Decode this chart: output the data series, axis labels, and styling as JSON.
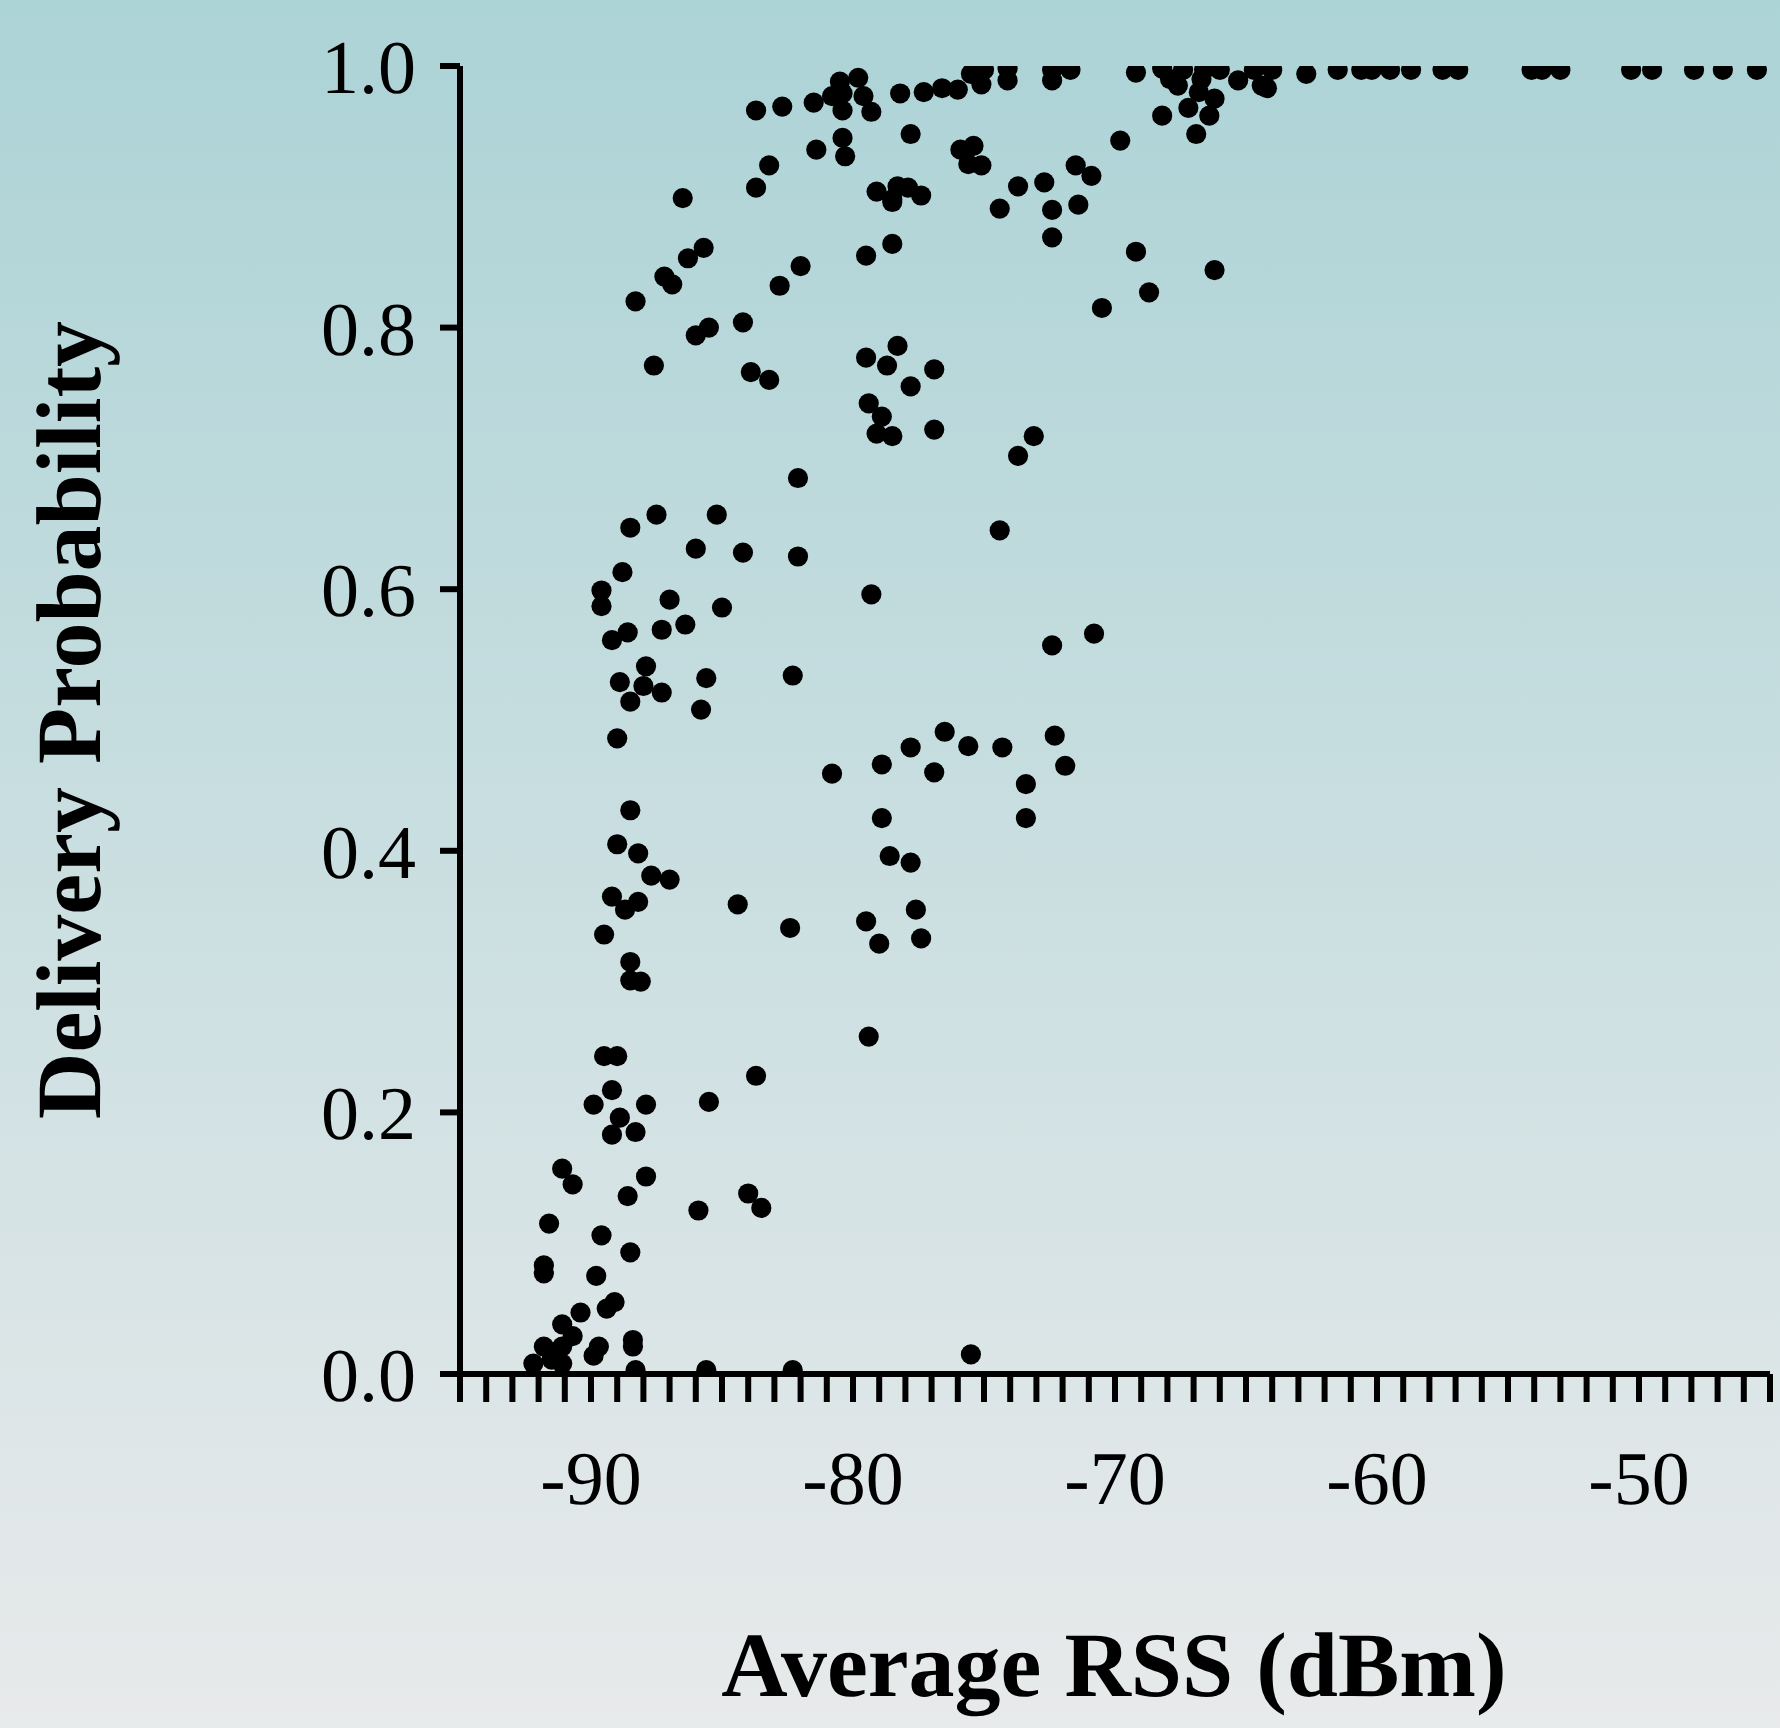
{
  "chart_data": {
    "type": "scatter",
    "xlabel": "Average RSS (dBm)",
    "ylabel": "Delivery Probability",
    "marker": "circle",
    "xlim": [
      -95,
      -45
    ],
    "ylim": [
      0,
      1
    ],
    "xticks": [
      {
        "value": -95,
        "label": null
      },
      {
        "value": -94,
        "label": null
      },
      {
        "value": -93,
        "label": null
      },
      {
        "value": -92,
        "label": null
      },
      {
        "value": -91,
        "label": null
      },
      -90,
      {
        "value": -89,
        "label": null
      },
      {
        "value": -88,
        "label": null
      },
      {
        "value": -87,
        "label": null
      },
      {
        "value": -86,
        "label": null
      },
      {
        "value": -85,
        "label": null
      },
      {
        "value": -84,
        "label": null
      },
      {
        "value": -83,
        "label": null
      },
      {
        "value": -82,
        "label": null
      },
      {
        "value": -81,
        "label": null
      },
      -80,
      {
        "value": -79,
        "label": null
      },
      {
        "value": -78,
        "label": null
      },
      {
        "value": -77,
        "label": null
      },
      {
        "value": -76,
        "label": null
      },
      {
        "value": -75,
        "label": null
      },
      {
        "value": -74,
        "label": null
      },
      {
        "value": -73,
        "label": null
      },
      {
        "value": -72,
        "label": null
      },
      {
        "value": -71,
        "label": null
      },
      -70,
      {
        "value": -69,
        "label": null
      },
      {
        "value": -68,
        "label": null
      },
      {
        "value": -67,
        "label": null
      },
      {
        "value": -66,
        "label": null
      },
      {
        "value": -65,
        "label": null
      },
      {
        "value": -64,
        "label": null
      },
      {
        "value": -63,
        "label": null
      },
      {
        "value": -62,
        "label": null
      },
      {
        "value": -61,
        "label": null
      },
      -60,
      {
        "value": -59,
        "label": null
      },
      {
        "value": -58,
        "label": null
      },
      {
        "value": -57,
        "label": null
      },
      {
        "value": -56,
        "label": null
      },
      {
        "value": -55,
        "label": null
      },
      {
        "value": -54,
        "label": null
      },
      {
        "value": -53,
        "label": null
      },
      {
        "value": -52,
        "label": null
      },
      {
        "value": -51,
        "label": null
      },
      -50,
      {
        "value": -49,
        "label": null
      },
      {
        "value": -48,
        "label": null
      },
      {
        "value": -47,
        "label": null
      },
      {
        "value": -46,
        "label": null
      },
      {
        "value": -45,
        "label": null
      }
    ],
    "yticks": [
      {
        "value": 0,
        "label": "0.0"
      },
      0.2,
      0.4,
      0.6,
      0.8,
      {
        "value": 1,
        "label": "1.0"
      }
    ],
    "series": [
      {
        "color": "#000000",
        "x": [
          -83.7,
          -82.7,
          -81.5,
          -80.8,
          -80.5,
          -79.8,
          -80.4,
          -79.3,
          -81.4,
          -80.4,
          -80.3,
          -83.2,
          -83.7,
          -86.5,
          -85.7,
          -86.3,
          -87.2,
          -86.9,
          -82.0,
          -82.8,
          -88.3,
          -84.2,
          -85.5,
          -86.0,
          -87.6,
          -83.9,
          -83.2,
          -79.5,
          -79.1,
          -78.5,
          -78.5,
          -79.5,
          -78.7,
          -79.4,
          -78.9,
          -79.1,
          -78.5,
          -82.1,
          -87.5,
          -88.5,
          -85.2,
          -86.0,
          -84.2,
          -82.1,
          -79.3,
          -88.8,
          -89.6,
          -89.6,
          -87.0,
          -87.3,
          -86.4,
          -85.0,
          -88.6,
          -89.2,
          -87.9,
          -88.9,
          -88.0,
          -87.3,
          -85.6,
          -82.3,
          -88.5,
          -85.8,
          -89.0,
          -80.8,
          -78.9,
          -88.5,
          -89.0,
          -88.2,
          -78.9,
          -78.6,
          -87.7,
          -87.0,
          -89.2,
          -88.2,
          -88.7,
          -84.4,
          -82.4,
          -89.5,
          -79.5,
          -79.0,
          -88.5,
          -88.5,
          -88.1,
          -79.4,
          -89.5,
          -89.0,
          -89.2,
          -89.9,
          -87.9,
          -85.5,
          -83.7,
          -88.9,
          -89.2,
          -88.3,
          -91.1,
          -90.7,
          -87.9,
          -88.6,
          -85.9,
          -84.0,
          -83.5,
          -91.6,
          -89.6,
          -88.5,
          -91.8,
          -91.8,
          -89.8,
          -89.1,
          -89.4,
          -90.4,
          -91.1,
          -90.7,
          -91.8,
          -91.1,
          -89.7,
          -88.4,
          -88.4,
          -92.2,
          -91.5,
          -91.1,
          -89.9,
          -88.3,
          -85.6,
          -82.3,
          -80.4,
          -79.6,
          -78.2,
          -77.3,
          -76.6,
          -76.0,
          -75.5,
          -75.1,
          -75.0,
          -74.1,
          -74.1,
          -72.4,
          -71.7,
          -72.4,
          -69.2,
          -68.2,
          -67.4,
          -66.6,
          -66.0,
          -65.3,
          -64.7,
          -64.0,
          -64.2,
          -62.7,
          -67.6,
          -66.8,
          -66.2,
          -67.2,
          -66.4,
          -67.9,
          -66.7,
          -68.2,
          -66.9,
          -69.8,
          -77.8,
          -75.9,
          -75.4,
          -75.6,
          -75.1,
          -78.3,
          -78.5,
          -77.9,
          -77.4,
          -73.7,
          -74.4,
          -72.7,
          -72.4,
          -71.5,
          -70.9,
          -71.4,
          -72.4,
          -69.2,
          -68.7,
          -70.5,
          -66.2,
          -78.3,
          -76.9,
          -77.8,
          -76.9,
          -73.1,
          -73.7,
          -74.4,
          -72.4,
          -70.8,
          -77.8,
          -76.5,
          -76.9,
          -75.6,
          -74.3,
          -72.3,
          -71.9,
          -73.4,
          -73.4,
          -77.8,
          -77.6,
          -77.4,
          -75.5,
          -61.5,
          -60.6,
          -60.2,
          -59.5,
          -58.7,
          -57.5,
          -56.9,
          -54.1,
          -53.7,
          -53.0,
          -50.3,
          -49.5,
          -47.9,
          -46.8,
          -45.5,
          -64.4
        ],
        "values": [
          0.966,
          0.969,
          0.972,
          0.977,
          0.988,
          0.991,
          0.966,
          0.965,
          0.936,
          0.945,
          0.931,
          0.924,
          0.907,
          0.899,
          0.861,
          0.853,
          0.839,
          0.833,
          0.847,
          0.832,
          0.82,
          0.804,
          0.8,
          0.794,
          0.771,
          0.766,
          0.76,
          0.855,
          0.904,
          0.898,
          0.864,
          0.777,
          0.771,
          0.742,
          0.732,
          0.719,
          0.717,
          0.685,
          0.657,
          0.647,
          0.657,
          0.631,
          0.628,
          0.625,
          0.596,
          0.613,
          0.599,
          0.587,
          0.592,
          0.569,
          0.573,
          0.586,
          0.567,
          0.561,
          0.541,
          0.529,
          0.526,
          0.521,
          0.532,
          0.534,
          0.514,
          0.508,
          0.486,
          0.459,
          0.466,
          0.431,
          0.405,
          0.398,
          0.425,
          0.396,
          0.381,
          0.378,
          0.365,
          0.361,
          0.355,
          0.359,
          0.341,
          0.336,
          0.346,
          0.329,
          0.315,
          0.301,
          0.3,
          0.258,
          0.243,
          0.243,
          0.217,
          0.206,
          0.206,
          0.208,
          0.228,
          0.196,
          0.183,
          0.185,
          0.157,
          0.145,
          0.151,
          0.136,
          0.125,
          0.138,
          0.127,
          0.115,
          0.106,
          0.093,
          0.083,
          0.077,
          0.075,
          0.055,
          0.05,
          0.047,
          0.038,
          0.029,
          0.021,
          0.021,
          0.021,
          0.026,
          0.021,
          0.008,
          0.011,
          0.008,
          0.014,
          0.003,
          0.003,
          0.003,
          0.979,
          0.977,
          0.979,
          0.98,
          0.983,
          0.982,
          0.994,
          0.986,
          0.997,
          0.998,
          0.989,
          0.997,
          0.997,
          0.989,
          0.995,
          0.998,
          0.997,
          0.997,
          0.997,
          0.989,
          0.997,
          0.997,
          0.983,
          0.994,
          0.985,
          0.98,
          0.975,
          0.968,
          0.962,
          0.99,
          0.99,
          0.962,
          0.948,
          0.943,
          0.948,
          0.936,
          0.939,
          0.925,
          0.924,
          0.908,
          0.896,
          0.907,
          0.901,
          0.908,
          0.891,
          0.911,
          0.89,
          0.924,
          0.916,
          0.894,
          0.869,
          0.858,
          0.827,
          0.815,
          0.844,
          0.786,
          0.768,
          0.755,
          0.722,
          0.717,
          0.702,
          0.645,
          0.557,
          0.566,
          0.479,
          0.491,
          0.46,
          0.48,
          0.479,
          0.488,
          0.465,
          0.451,
          0.425,
          0.391,
          0.355,
          0.333,
          0.015,
          0.997,
          0.997,
          0.997,
          0.997,
          0.997,
          0.997,
          0.997,
          0.997,
          0.997,
          0.997,
          0.997,
          0.997,
          0.997,
          0.997,
          0.997,
          0.985
        ]
      }
    ]
  }
}
